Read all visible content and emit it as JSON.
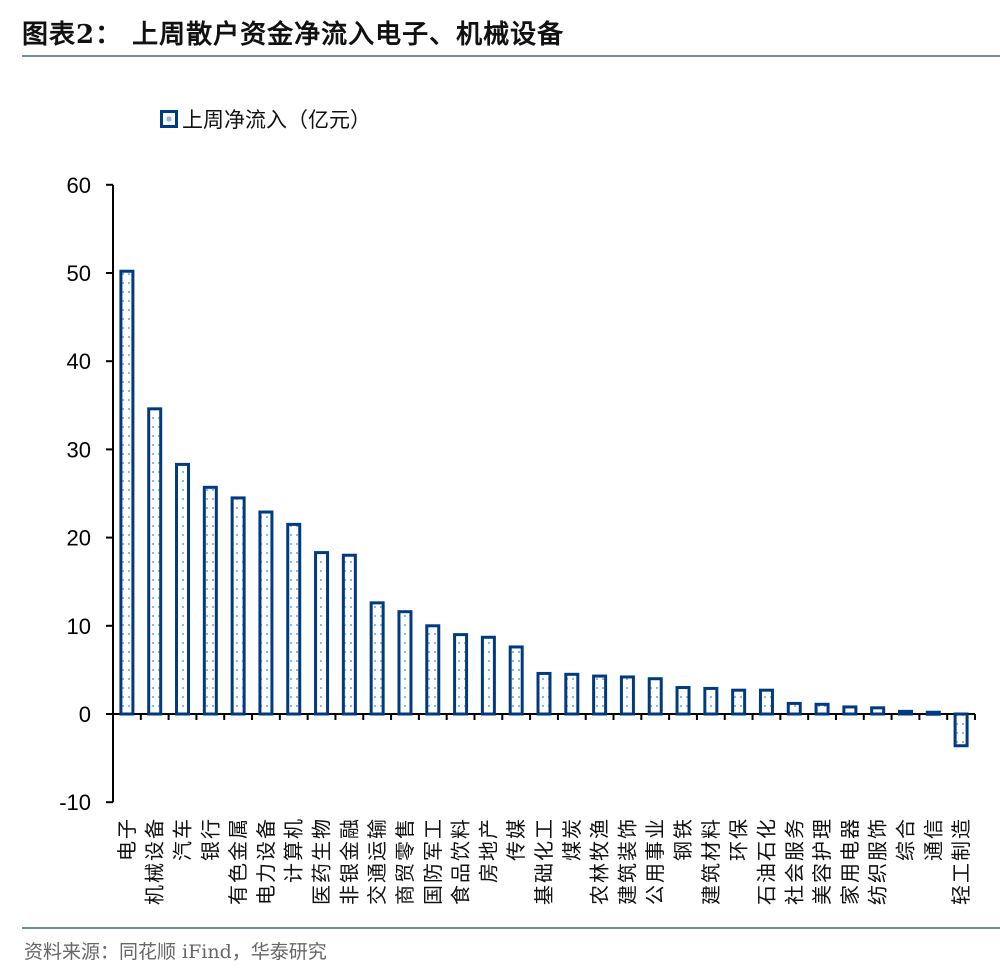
{
  "header": {
    "title": "图表2：  上周散户资金净流入电子、机械设备"
  },
  "footer": {
    "source": "资料来源：同花顺 iFind，华泰研究"
  },
  "colors": {
    "bar_stroke": "#003a80",
    "bar_dots": "#8fb8e0",
    "rule": "#6f8cb0",
    "axis": "#000000"
  },
  "chart_data": {
    "type": "bar",
    "title": "上周散户资金净流入电子、机械设备",
    "xlabel": "",
    "ylabel": "",
    "ylim": [
      -10,
      60
    ],
    "yticks": [
      60,
      50,
      40,
      30,
      20,
      10,
      0,
      -10
    ],
    "grid": false,
    "legend": {
      "position": "top-left",
      "entries": [
        "上周净流入（亿元）"
      ]
    },
    "categories": [
      "电子",
      "机械设备",
      "汽车",
      "银行",
      "有色金属",
      "电力设备",
      "计算机",
      "医药生物",
      "非银金融",
      "交通运输",
      "商贸零售",
      "国防军工",
      "食品饮料",
      "房地产",
      "传媒",
      "基础化工",
      "煤炭",
      "农林牧渔",
      "建筑装饰",
      "公用事业",
      "钢铁",
      "建筑材料",
      "环保",
      "石油石化",
      "社会服务",
      "美容护理",
      "家用电器",
      "纺织服饰",
      "综合",
      "通信",
      "轻工制造"
    ],
    "series": [
      {
        "name": "上周净流入（亿元）",
        "values": [
          50.2,
          34.6,
          28.3,
          25.7,
          24.5,
          22.9,
          21.5,
          18.3,
          18.0,
          12.6,
          11.6,
          10.0,
          9.0,
          8.7,
          7.6,
          4.6,
          4.5,
          4.3,
          4.2,
          4.0,
          3.0,
          2.9,
          2.7,
          2.7,
          1.2,
          1.1,
          0.8,
          0.7,
          0.3,
          0.2,
          -3.6
        ]
      }
    ],
    "source": "资料来源：同花顺 iFind，华泰研究"
  }
}
